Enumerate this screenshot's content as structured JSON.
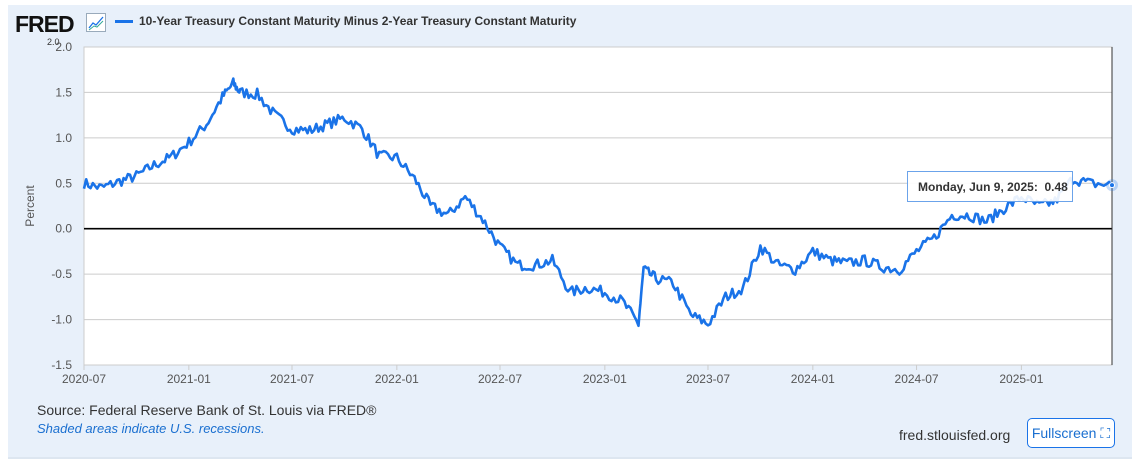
{
  "header": {
    "logo": "FRED",
    "logo_version": "2.0",
    "logo_icon": "chart-line-icon"
  },
  "footer": {
    "source": "Source: Federal Reserve Bank of St. Louis via FRED®",
    "recessions_note": "Shaded areas indicate U.S. recessions.",
    "site": "fred.stlouisfed.org",
    "fullscreen_label": "Fullscreen",
    "fullscreen_icon": "expand-icon"
  },
  "tooltip": {
    "date": "Monday, Jun 9, 2025:",
    "value": "0.48"
  },
  "chart_data": {
    "type": "line",
    "title": "",
    "xlabel": "",
    "ylabel": "Percent",
    "ylim": [
      -1.5,
      2.0
    ],
    "xlim": [
      "2020-07-01",
      "2025-06-09"
    ],
    "grid": true,
    "legend": "top-left",
    "color": "#1a73e8",
    "yticks": [
      "2.0",
      "1.5",
      "1.0",
      "0.5",
      "0.0",
      "-0.5",
      "-1.0",
      "-1.5"
    ],
    "xticks": [
      "2020-07",
      "2021-01",
      "2021-07",
      "2022-01",
      "2022-07",
      "2023-01",
      "2023-07",
      "2024-01",
      "2024-07",
      "2025-01"
    ],
    "series": [
      {
        "name": "10-Year Treasury Constant Maturity Minus 2-Year Treasury Constant Maturity",
        "x": [
          "2020-07-01",
          "2020-08-01",
          "2020-09-01",
          "2020-10-01",
          "2020-11-01",
          "2020-12-01",
          "2021-01-01",
          "2021-02-01",
          "2021-03-01",
          "2021-03-20",
          "2021-04-01",
          "2021-05-01",
          "2021-06-01",
          "2021-07-01",
          "2021-08-01",
          "2021-09-01",
          "2021-10-01",
          "2021-11-01",
          "2021-12-01",
          "2022-01-01",
          "2022-02-01",
          "2022-03-01",
          "2022-04-01",
          "2022-05-01",
          "2022-06-01",
          "2022-07-01",
          "2022-08-01",
          "2022-09-01",
          "2022-10-01",
          "2022-11-01",
          "2022-12-01",
          "2023-01-01",
          "2023-02-01",
          "2023-03-01",
          "2023-03-10",
          "2023-04-01",
          "2023-05-01",
          "2023-06-01",
          "2023-07-01",
          "2023-08-01",
          "2023-09-01",
          "2023-10-01",
          "2023-11-01",
          "2023-12-01",
          "2024-01-01",
          "2024-02-01",
          "2024-03-01",
          "2024-04-01",
          "2024-05-01",
          "2024-06-01",
          "2024-07-01",
          "2024-08-01",
          "2024-09-01",
          "2024-10-01",
          "2024-11-01",
          "2024-12-01",
          "2025-01-01",
          "2025-02-01",
          "2025-03-01",
          "2025-04-01",
          "2025-05-01",
          "2025-06-09"
        ],
        "values": [
          0.5,
          0.45,
          0.52,
          0.58,
          0.7,
          0.79,
          0.95,
          1.15,
          1.45,
          1.6,
          1.5,
          1.48,
          1.25,
          1.1,
          1.08,
          1.15,
          1.22,
          1.1,
          0.8,
          0.78,
          0.55,
          0.25,
          0.15,
          0.35,
          0.1,
          -0.2,
          -0.4,
          -0.4,
          -0.35,
          -0.7,
          -0.65,
          -0.7,
          -0.8,
          -1.05,
          -0.45,
          -0.55,
          -0.6,
          -0.95,
          -1.05,
          -0.75,
          -0.65,
          -0.2,
          -0.4,
          -0.45,
          -0.25,
          -0.35,
          -0.38,
          -0.35,
          -0.42,
          -0.45,
          -0.25,
          -0.1,
          0.15,
          0.15,
          0.08,
          0.22,
          0.35,
          0.25,
          0.3,
          0.55,
          0.5,
          0.48
        ]
      }
    ]
  }
}
